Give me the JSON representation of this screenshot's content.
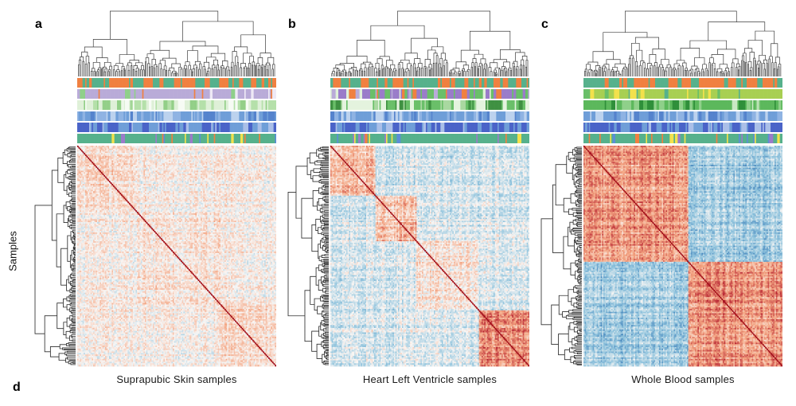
{
  "y_axis_label": "Samples",
  "panel_d_label": "d",
  "chart_data": {
    "type": "heatmap",
    "subtype": "clustered_correlation_heatmap",
    "description": "Three sample-by-sample correlation heatmaps with hierarchical clustering dendrograms on top and left, six categorical annotation color bars above each heatmap, diverging blue-white-red colormap with dark red diagonal.",
    "colormap": {
      "negative": "#2166ac",
      "mid": "#f7f4f2",
      "positive": "#b2182b",
      "diagonal": "#a01018"
    },
    "legend": "none",
    "panels": [
      {
        "label": "a",
        "title": "Suprapubic Skin samples",
        "structure": "weak clustering, mostly pale low correlations",
        "render": {
          "seed": 11,
          "n": 150,
          "group_sizes": [
            0.3,
            0.42,
            0.28
          ],
          "within": [
            0.15,
            0.1,
            0.17
          ],
          "between": 0.03,
          "noise": 0.21,
          "texture": 0.2,
          "offset": 0.02
        },
        "annotation_rows": [
          {
            "colors": [
              "#f08040",
              "#56b18c"
            ],
            "weights": [
              0.52,
              0.48
            ],
            "run": 0.5
          },
          {
            "colors": [
              "#b9abd8",
              "#f08040",
              "#8fcf8a",
              "#eee9f5"
            ],
            "weights": [
              0.8,
              0.07,
              0.05,
              0.08
            ],
            "run": 0.45
          },
          {
            "colors": [
              "#dff0d8",
              "#b5e0aa",
              "#f6fbf4",
              "#93cf88"
            ],
            "weights": [
              0.34,
              0.3,
              0.18,
              0.18
            ],
            "run": 0.5
          },
          {
            "colors": [
              "#6f9ed8",
              "#bcd2ee",
              "#5583cd",
              "#8fb3e3"
            ],
            "weights": [
              0.45,
              0.2,
              0.15,
              0.2
            ],
            "run": 0.5
          },
          {
            "colors": [
              "#4a63c8",
              "#6f9ed8",
              "#aabfe8"
            ],
            "weights": [
              0.5,
              0.3,
              0.2
            ],
            "run": 0.5
          },
          {
            "colors": [
              "#56b18c",
              "#f3e14c",
              "#f08040",
              "#9a7cc9",
              "#5b8ed6"
            ],
            "weights": [
              0.84,
              0.05,
              0.04,
              0.04,
              0.03
            ],
            "run": 0.3
          }
        ]
      },
      {
        "label": "b",
        "title": "Heart Left Ventricle samples",
        "structure": "moderate clustering, several red diagonal blocks, strong red block bottom-right",
        "render": {
          "seed": 22,
          "n": 150,
          "group_sizes": [
            0.23,
            0.2,
            0.32,
            0.25
          ],
          "within": [
            0.4,
            0.3,
            0.1,
            0.55
          ],
          "between": -0.16,
          "noise": 0.22,
          "texture": 0.28,
          "offset": 0.02
        },
        "annotation_rows": [
          {
            "colors": [
              "#f08040",
              "#56b18c"
            ],
            "weights": [
              0.45,
              0.55
            ],
            "run": 0.55
          },
          {
            "colors": [
              "#9a7cc9",
              "#6abf69",
              "#b9abd8",
              "#f08040",
              "#dff0d8"
            ],
            "weights": [
              0.42,
              0.28,
              0.14,
              0.08,
              0.08
            ],
            "run": 0.55
          },
          {
            "colors": [
              "#6abf69",
              "#a9d8a0",
              "#3f9142",
              "#e4f3de"
            ],
            "weights": [
              0.38,
              0.28,
              0.18,
              0.16
            ],
            "run": 0.5
          },
          {
            "colors": [
              "#6f9ed8",
              "#bcd2ee",
              "#5583cd",
              "#8fb3e3"
            ],
            "weights": [
              0.45,
              0.2,
              0.15,
              0.2
            ],
            "run": 0.5
          },
          {
            "colors": [
              "#4a63c8",
              "#6f9ed8",
              "#aabfe8"
            ],
            "weights": [
              0.5,
              0.3,
              0.2
            ],
            "run": 0.5
          },
          {
            "colors": [
              "#56b18c",
              "#f3e14c",
              "#f08040",
              "#9a7cc9",
              "#5b8ed6"
            ],
            "weights": [
              0.84,
              0.05,
              0.04,
              0.04,
              0.03
            ],
            "run": 0.3
          }
        ]
      },
      {
        "label": "c",
        "title": "Whole Blood samples",
        "structure": "strong two-cluster structure, large red blocks on diagonal, blue off-diagonal blocks",
        "render": {
          "seed": 33,
          "n": 150,
          "group_sizes": [
            0.53,
            0.47
          ],
          "within": [
            0.5,
            0.56
          ],
          "between": -0.4,
          "noise": 0.2,
          "texture": 0.28,
          "offset": 0.0
        },
        "annotation_rows": [
          {
            "colors": [
              "#f08040",
              "#56b18c"
            ],
            "weights": [
              0.48,
              0.52
            ],
            "run": 0.55
          },
          {
            "colors": [
              "#a8cf52",
              "#f3e14c",
              "#6abf69",
              "#56b18c"
            ],
            "weights": [
              0.74,
              0.12,
              0.08,
              0.06
            ],
            "run": 0.45
          },
          {
            "colors": [
              "#5cb85c",
              "#8fd08a",
              "#2f8f3a",
              "#c9e8c4"
            ],
            "weights": [
              0.55,
              0.2,
              0.15,
              0.1
            ],
            "run": 0.5
          },
          {
            "colors": [
              "#6f9ed8",
              "#bcd2ee",
              "#5583cd",
              "#8fb3e3"
            ],
            "weights": [
              0.45,
              0.2,
              0.15,
              0.2
            ],
            "run": 0.5
          },
          {
            "colors": [
              "#4a63c8",
              "#6f9ed8",
              "#aabfe8"
            ],
            "weights": [
              0.5,
              0.3,
              0.2
            ],
            "run": 0.5
          },
          {
            "colors": [
              "#56b18c",
              "#f3e14c",
              "#f08040",
              "#9a7cc9",
              "#5b8ed6"
            ],
            "weights": [
              0.84,
              0.05,
              0.04,
              0.04,
              0.03
            ],
            "run": 0.3
          }
        ]
      }
    ]
  }
}
